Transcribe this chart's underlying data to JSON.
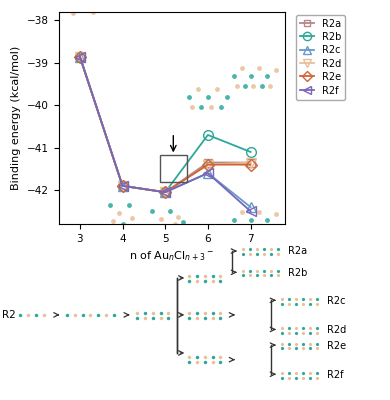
{
  "series": {
    "R2a": {
      "x": [
        3,
        4,
        5,
        6,
        7
      ],
      "y": [
        -38.85,
        -41.9,
        -42.05,
        -41.35,
        -41.35
      ],
      "color": "#b5868a",
      "marker": "s",
      "markersize": 6,
      "zorder": 3
    },
    "R2b": {
      "x": [
        3,
        4,
        5,
        6,
        7
      ],
      "y": [
        -38.85,
        -41.9,
        -42.05,
        -40.7,
        -41.1
      ],
      "color": "#2ca89a",
      "marker": "o",
      "markersize": 7,
      "zorder": 3
    },
    "R2c": {
      "x": [
        3,
        4,
        5,
        6,
        7
      ],
      "y": [
        -38.85,
        -41.9,
        -42.05,
        -41.6,
        -42.4
      ],
      "color": "#6699cc",
      "marker": "^",
      "markersize": 7,
      "zorder": 3
    },
    "R2d": {
      "x": [
        3,
        4,
        5,
        6,
        7
      ],
      "y": [
        -38.85,
        -41.9,
        -42.05,
        -41.4,
        -41.35
      ],
      "color": "#e8c098",
      "marker": "v",
      "markersize": 7,
      "zorder": 3
    },
    "R2e": {
      "x": [
        3,
        4,
        5,
        6,
        7
      ],
      "y": [
        -38.85,
        -41.9,
        -42.05,
        -41.4,
        -41.4
      ],
      "color": "#cc6633",
      "marker": "D",
      "markersize": 6,
      "zorder": 3
    },
    "R2f": {
      "x": [
        3,
        4,
        5,
        6,
        7
      ],
      "y": [
        -38.85,
        -41.9,
        -42.05,
        -41.6,
        -42.5
      ],
      "color": "#7766bb",
      "marker": "<",
      "markersize": 7,
      "zorder": 3
    }
  },
  "xlabel": "n of Au$_n$Cl$_{n+3}$$^-$",
  "ylabel": "Binding energy (kcal/mol)",
  "ylim": [
    -42.8,
    -37.8
  ],
  "xlim": [
    2.5,
    7.8
  ],
  "yticks": [
    -42,
    -41,
    -40,
    -39,
    -38
  ],
  "xticks": [
    3,
    4,
    5,
    6,
    7
  ],
  "bg_color": "#ffffff",
  "linewidth": 1.3,
  "marker_facecolor": "none",
  "cl_color": "#2ca89a",
  "au_color": "#e8c098"
}
